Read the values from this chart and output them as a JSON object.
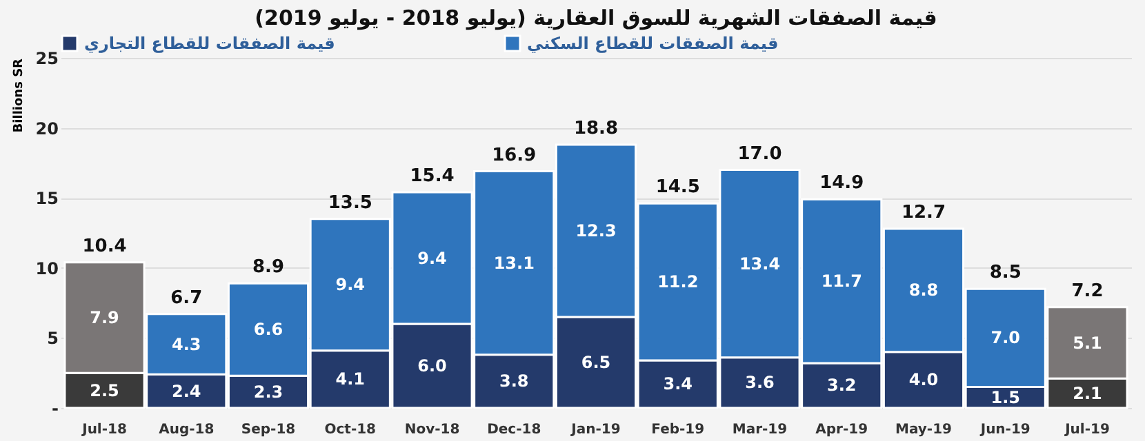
{
  "chart_data": {
    "type": "bar",
    "title": "قيمة الصفقات الشهرية للسوق العقارية (يوليو 2018 - يوليو 2019)",
    "ylabel": "Billions SR",
    "categories": [
      "Jul-18",
      "Aug-18",
      "Sep-18",
      "Oct-18",
      "Nov-18",
      "Dec-18",
      "Jan-19",
      "Feb-19",
      "Mar-19",
      "Apr-19",
      "May-19",
      "Jun-19",
      "Jul-19"
    ],
    "stacked": true,
    "series": [
      {
        "name": "قيمة الصفقات للقطاع التجاري",
        "color": "#243a6b",
        "colors": [
          "#3a3a3a",
          "#243a6b",
          "#243a6b",
          "#243a6b",
          "#243a6b",
          "#243a6b",
          "#243a6b",
          "#243a6b",
          "#243a6b",
          "#243a6b",
          "#243a6b",
          "#243a6b",
          "#3a3a3a"
        ],
        "values": [
          2.5,
          2.4,
          2.3,
          4.1,
          6.0,
          3.8,
          6.5,
          3.4,
          3.6,
          3.2,
          4.0,
          1.5,
          2.1
        ],
        "value_labels": [
          "2.5",
          "2.4",
          "2.3",
          "4.1",
          "6.0",
          "3.8",
          "6.5",
          "3.4",
          "3.6",
          "3.2",
          "4.0",
          "1.5",
          "2.1"
        ]
      },
      {
        "name": "قيمة الصفقات للقطاع السكني",
        "color": "#2f75bd",
        "colors": [
          "#7a7676",
          "#2f75bd",
          "#2f75bd",
          "#2f75bd",
          "#2f75bd",
          "#2f75bd",
          "#2f75bd",
          "#2f75bd",
          "#2f75bd",
          "#2f75bd",
          "#2f75bd",
          "#2f75bd",
          "#7a7676"
        ],
        "values": [
          7.9,
          4.3,
          6.6,
          9.4,
          9.4,
          13.1,
          12.3,
          11.2,
          13.4,
          11.7,
          8.8,
          7.0,
          5.1
        ],
        "value_labels": [
          "7.9",
          "4.3",
          "6.6",
          "9.4",
          "9.4",
          "13.1",
          "12.3",
          "11.2",
          "13.4",
          "11.7",
          "8.8",
          "7.0",
          "5.1"
        ]
      }
    ],
    "totals": [
      "10.4",
      "6.7",
      "8.9",
      "13.5",
      "15.4",
      "16.9",
      "18.8",
      "14.5",
      "17.0",
      "14.9",
      "12.7",
      "8.5",
      "7.2"
    ],
    "ylim": [
      0,
      25
    ],
    "yticks": [
      {
        "value": 0,
        "label": "-"
      },
      5,
      10,
      15,
      20,
      25
    ],
    "grid": "y",
    "legend": "top"
  }
}
